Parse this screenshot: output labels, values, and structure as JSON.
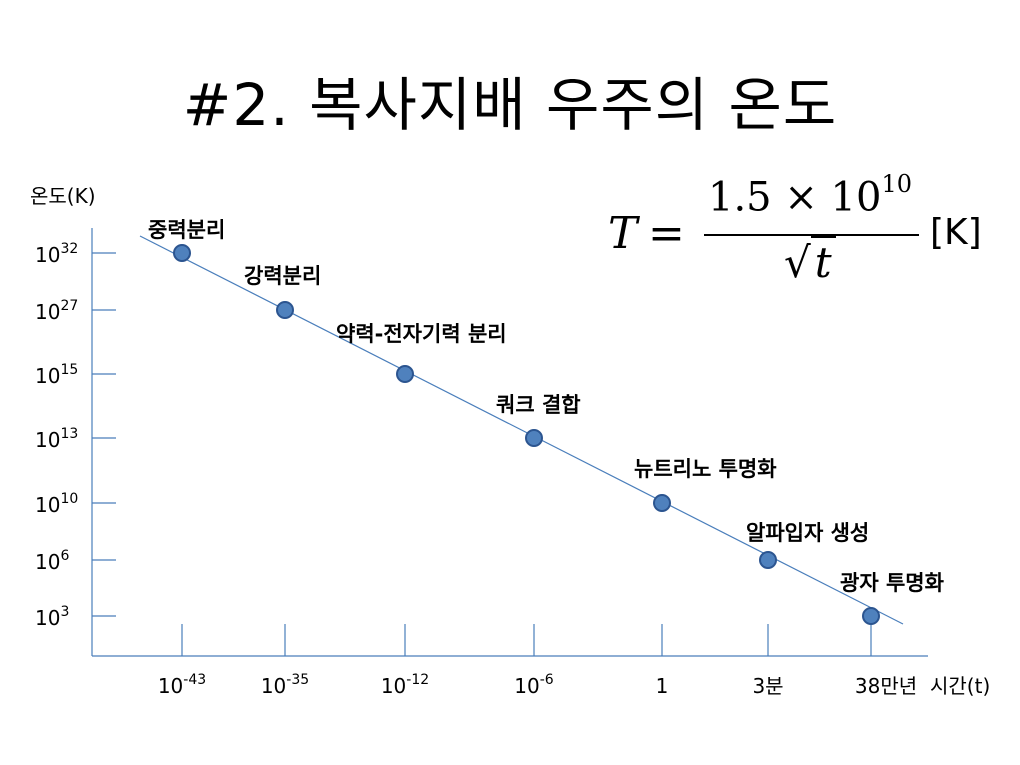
{
  "slide": {
    "title": "#2. 복사지배 우주의 온도"
  },
  "formula": {
    "lhs": "T",
    "eq": "=",
    "numerator_base": "1.5 × 10",
    "numerator_exp": "10",
    "denominator_root": "√",
    "denominator_var": "t",
    "unit": "[K]"
  },
  "chart_data": {
    "type": "line",
    "ylabel": "온도(K)",
    "xlabel": "시간(t)",
    "x_ticks": [
      {
        "base": "10",
        "exp": "-43"
      },
      {
        "base": "10",
        "exp": "-35"
      },
      {
        "base": "10",
        "exp": "-12"
      },
      {
        "base": "10",
        "exp": "-6"
      },
      {
        "base": "1",
        "exp": ""
      },
      {
        "base": "3분",
        "exp": ""
      },
      {
        "base": "38만년",
        "exp": ""
      }
    ],
    "y_ticks": [
      {
        "base": "10",
        "exp": "32"
      },
      {
        "base": "10",
        "exp": "27"
      },
      {
        "base": "10",
        "exp": "15"
      },
      {
        "base": "10",
        "exp": "13"
      },
      {
        "base": "10",
        "exp": "10"
      },
      {
        "base": "10",
        "exp": "6"
      },
      {
        "base": "10",
        "exp": "3"
      }
    ],
    "points": [
      {
        "label": "중력분리",
        "x_index": 0,
        "y_index": 0
      },
      {
        "label": "강력분리",
        "x_index": 1,
        "y_index": 1
      },
      {
        "label": "약력-전자기력 분리",
        "x_index": 2,
        "y_index": 2
      },
      {
        "label": "쿼크 결합",
        "x_index": 3,
        "y_index": 3
      },
      {
        "label": "뉴트리노 투명화",
        "x_index": 4,
        "y_index": 4
      },
      {
        "label": "알파입자 생성",
        "x_index": 5,
        "y_index": 5
      },
      {
        "label": "광자 투명화",
        "x_index": 6,
        "y_index": 6
      }
    ],
    "colors": {
      "marker_fill": "#4f81bd",
      "marker_stroke": "#2c5590",
      "line": "#4a7ebb",
      "axis": "#4a7ebb"
    }
  }
}
